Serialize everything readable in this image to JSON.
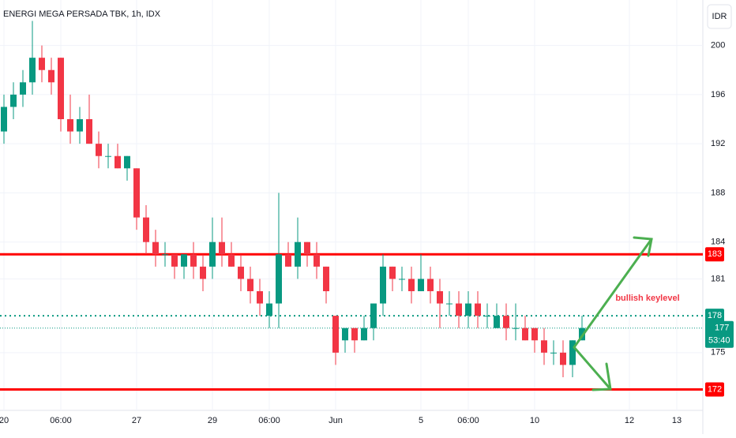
{
  "chart_data": {
    "type": "candlestick",
    "title": "ENERGI MEGA PERSADA TBK, 1h, IDX",
    "currency": "IDR",
    "annotation": "bullish keylevel",
    "up_color": "#089981",
    "down_color": "#f23645",
    "categories": [
      "20",
      null,
      null,
      null,
      null,
      null,
      "06:00",
      null,
      null,
      null,
      null,
      null,
      null,
      null,
      "27",
      null,
      null,
      null,
      null,
      null,
      null,
      null,
      "29",
      null,
      null,
      null,
      null,
      null,
      "06:00",
      null,
      null,
      null,
      null,
      null,
      null,
      "Jun",
      null,
      null,
      null,
      null,
      null,
      null,
      null,
      null,
      "5",
      null,
      null,
      null,
      null,
      "06:00",
      null,
      null,
      null,
      null,
      null,
      null,
      "10",
      null,
      null,
      null,
      null,
      null,
      null,
      null,
      null,
      null,
      "12",
      null,
      null,
      null,
      null,
      "13",
      null,
      null
    ],
    "open": [
      193,
      195,
      196,
      197,
      199,
      198,
      199,
      194,
      193,
      194,
      192,
      191,
      191,
      190,
      190,
      186,
      184,
      183,
      183,
      182,
      183,
      182,
      182,
      184,
      183,
      182,
      181,
      180,
      178,
      179,
      183,
      182,
      184,
      183,
      182,
      178,
      176,
      177,
      176,
      177,
      179,
      182,
      181,
      181,
      180,
      181,
      180,
      179,
      179,
      178,
      179,
      178,
      177,
      178,
      177,
      177,
      177,
      176,
      175,
      175,
      174,
      176,
      null,
      null,
      null,
      null,
      null,
      null,
      null,
      null,
      null,
      null,
      null,
      null
    ],
    "high": [
      196,
      197,
      198,
      202,
      200,
      199,
      199,
      196,
      195,
      196,
      193,
      192,
      192,
      191,
      190,
      187,
      185,
      184,
      183,
      183,
      184,
      183,
      186,
      186,
      184,
      183,
      182,
      181,
      180,
      188,
      184,
      186,
      184,
      184,
      182,
      178,
      177,
      177,
      178,
      179,
      183,
      182,
      182,
      182,
      183,
      182,
      181,
      180,
      180,
      180,
      180,
      179,
      179,
      179,
      179,
      178,
      177,
      177,
      176,
      176,
      176,
      178,
      null,
      null,
      null,
      null,
      null,
      null,
      null,
      null,
      null,
      null,
      null,
      null
    ],
    "low": [
      192,
      194,
      195,
      196,
      197,
      196,
      193,
      192,
      192,
      192,
      190,
      190,
      190,
      189,
      185,
      183,
      182,
      182,
      181,
      181,
      181,
      180,
      181,
      182,
      182,
      180,
      179,
      178,
      177,
      177,
      182,
      181,
      182,
      181,
      179,
      174,
      175,
      175,
      176,
      176,
      178,
      180,
      180,
      179,
      180,
      179,
      177,
      178,
      177,
      177,
      177,
      177,
      177,
      176,
      176,
      176,
      175,
      174,
      174,
      173,
      173,
      176,
      null,
      null,
      null,
      null,
      null,
      null,
      null,
      null,
      null,
      null,
      null,
      null
    ],
    "close": [
      195,
      196,
      197,
      199,
      198,
      197,
      194,
      193,
      194,
      192,
      191,
      191,
      190,
      191,
      186,
      184,
      183,
      183,
      182,
      183,
      182,
      181,
      184,
      183,
      182,
      181,
      180,
      179,
      179,
      183,
      182,
      184,
      183,
      182,
      180,
      175,
      177,
      176,
      177,
      179,
      182,
      181,
      181,
      180,
      181,
      180,
      179,
      179,
      178,
      179,
      178,
      178,
      178,
      177,
      177,
      176,
      176,
      175,
      175,
      174,
      176,
      177,
      null,
      null,
      null,
      null,
      null,
      null,
      null,
      null,
      null,
      null,
      null,
      null
    ],
    "ylim": [
      170.3,
      203.7
    ],
    "yticks": [
      175,
      181,
      184,
      188,
      192,
      196,
      200
    ],
    "grid": true,
    "h_lines": [
      {
        "value": 183,
        "color": "#ff0000",
        "style": "solid"
      },
      {
        "value": 172,
        "color": "#ff0000",
        "style": "solid"
      },
      {
        "value": 178,
        "color": "#089981",
        "style": "dotted"
      }
    ],
    "last_price": 177,
    "countdown": "53:40"
  }
}
